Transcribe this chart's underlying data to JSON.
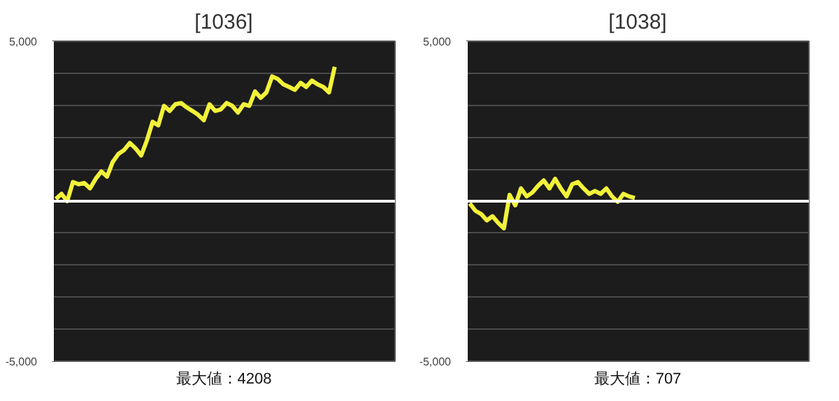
{
  "chart_data": [
    {
      "type": "line",
      "title": "[1036]",
      "annotations": [
        "最大値：4208"
      ],
      "categories": [
        null,
        null,
        null,
        null,
        null,
        null,
        null,
        null,
        null,
        null,
        null,
        null,
        null,
        null,
        null,
        null,
        null,
        null,
        null,
        null,
        null,
        null,
        null,
        null,
        null,
        null,
        null,
        null,
        null,
        null,
        null,
        null,
        null,
        null,
        null,
        null,
        null,
        null,
        null,
        null,
        null,
        null,
        null,
        null,
        null,
        null,
        null,
        null,
        null,
        null,
        null,
        null,
        null,
        null,
        null,
        null,
        null,
        null,
        null,
        null
      ],
      "series": [
        {
          "color": "#f2f23a",
          "values": [
            70,
            230,
            0,
            600,
            530,
            570,
            400,
            700,
            930,
            770,
            1230,
            1480,
            1600,
            1820,
            1650,
            1430,
            1900,
            2480,
            2370,
            2980,
            2820,
            3030,
            3070,
            2930,
            2820,
            2700,
            2530,
            3030,
            2820,
            2870,
            3070,
            2980,
            2770,
            3030,
            2980,
            3430,
            3230,
            3400,
            3900,
            3820,
            3650,
            3570,
            3480,
            3700,
            3570,
            3770,
            3650,
            3570,
            3400,
            4200,
            null,
            null,
            null,
            null,
            null,
            null,
            null,
            null,
            null,
            null
          ]
        }
      ],
      "ylim": [
        -5000,
        5000
      ],
      "yticks": [
        {
          "value": -5000,
          "label": "-5,000"
        },
        {
          "value": -4000,
          "label": null
        },
        {
          "value": -3000,
          "label": null
        },
        {
          "value": -2000,
          "label": null
        },
        {
          "value": -1000,
          "label": null
        },
        {
          "value": 0,
          "label": null
        },
        {
          "value": 1000,
          "label": null
        },
        {
          "value": 2000,
          "label": null
        },
        {
          "value": 3000,
          "label": null
        },
        {
          "value": 4000,
          "label": null
        },
        {
          "value": 5000,
          "label": "5,000"
        }
      ],
      "grid": "y",
      "tick_labels": "y",
      "ref_lines": [
        {
          "axis": "y",
          "value": 0,
          "color": "#ffffff"
        }
      ]
    },
    {
      "type": "line",
      "title": "[1038]",
      "annotations": [
        "最大値：707"
      ],
      "categories": [
        null,
        null,
        null,
        null,
        null,
        null,
        null,
        null,
        null,
        null,
        null,
        null,
        null,
        null,
        null,
        null,
        null,
        null,
        null,
        null,
        null,
        null,
        null,
        null,
        null,
        null,
        null,
        null,
        null,
        null,
        null,
        null,
        null,
        null,
        null,
        null,
        null,
        null,
        null,
        null,
        null,
        null,
        null,
        null,
        null,
        null,
        null,
        null,
        null,
        null,
        null,
        null,
        null,
        null,
        null,
        null,
        null,
        null,
        null,
        null
      ],
      "series": [
        {
          "color": "#f2f23a",
          "values": [
            -70,
            -300,
            -400,
            -600,
            -470,
            -680,
            -850,
            200,
            -130,
            400,
            150,
            270,
            480,
            650,
            400,
            700,
            400,
            150,
            530,
            600,
            400,
            230,
            320,
            230,
            400,
            150,
            -20,
            230,
            150,
            100,
            null,
            null,
            null,
            null,
            null,
            null,
            null,
            null,
            null,
            null,
            null,
            null,
            null,
            null,
            null,
            null,
            null,
            null,
            null,
            null,
            null,
            null,
            null,
            null,
            null,
            null,
            null,
            null,
            null,
            null
          ]
        }
      ],
      "ylim": [
        -5000,
        5000
      ],
      "yticks": [
        {
          "value": -5000,
          "label": "-5,000"
        },
        {
          "value": -4000,
          "label": null
        },
        {
          "value": -3000,
          "label": null
        },
        {
          "value": -2000,
          "label": null
        },
        {
          "value": -1000,
          "label": null
        },
        {
          "value": 0,
          "label": null
        },
        {
          "value": 1000,
          "label": null
        },
        {
          "value": 2000,
          "label": null
        },
        {
          "value": 3000,
          "label": null
        },
        {
          "value": 4000,
          "label": null
        },
        {
          "value": 5000,
          "label": "5,000"
        }
      ],
      "grid": "y",
      "tick_labels": "y",
      "ref_lines": [
        {
          "axis": "y",
          "value": 0,
          "color": "#ffffff"
        }
      ]
    }
  ]
}
